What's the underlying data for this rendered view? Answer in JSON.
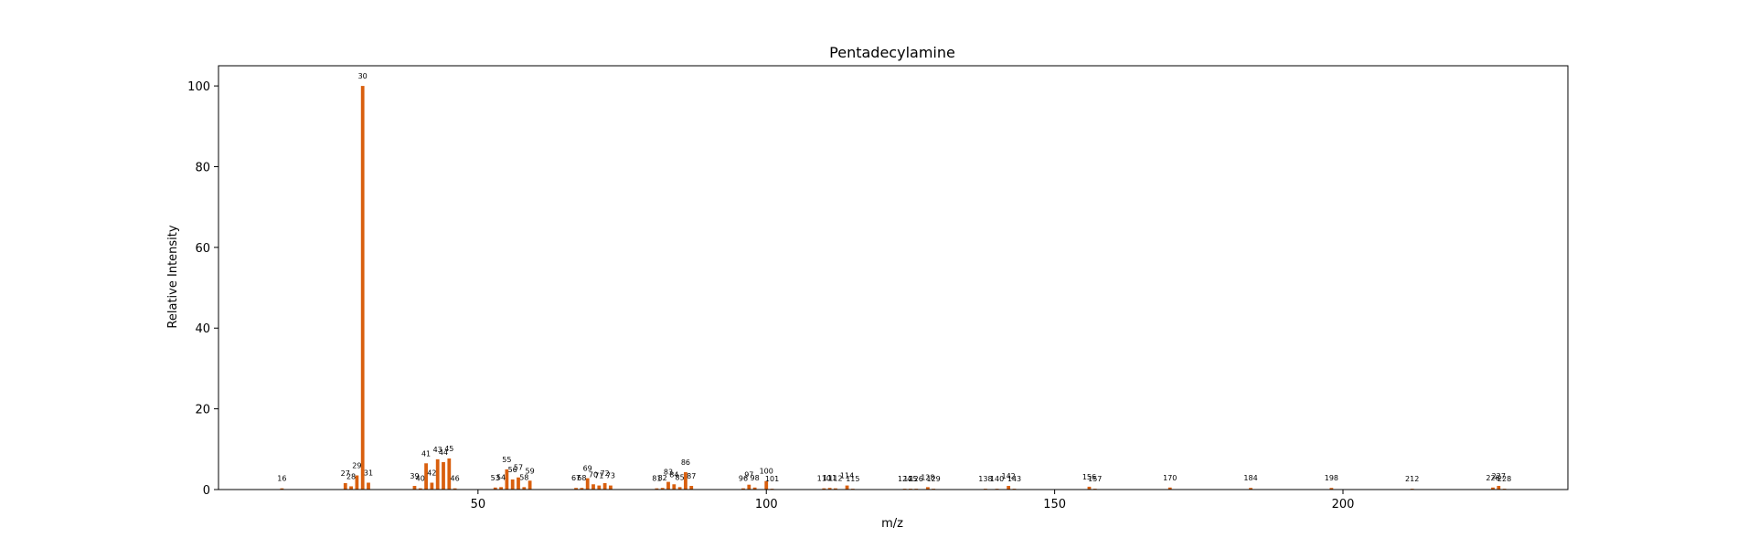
{
  "chart_data": {
    "type": "bar",
    "title": "Pentadecylamine",
    "xlabel": "m/z",
    "ylabel": "Relative Intensity",
    "xlim": [
      5,
      239
    ],
    "ylim": [
      0,
      105
    ],
    "xticks": [
      50,
      100,
      150,
      200
    ],
    "yticks": [
      0,
      20,
      40,
      60,
      80,
      100
    ],
    "bar_color": "#d95f0e",
    "grid": false,
    "legend": "none",
    "series": [
      {
        "x": [
          16,
          27,
          28,
          29,
          30,
          31,
          39,
          40,
          41,
          42,
          43,
          44,
          45,
          46,
          53,
          54,
          55,
          56,
          57,
          58,
          59,
          67,
          68,
          69,
          70,
          71,
          72,
          73,
          81,
          82,
          83,
          84,
          85,
          86,
          87,
          96,
          97,
          98,
          100,
          101,
          110,
          111,
          112,
          114,
          115,
          124,
          125,
          126,
          128,
          129,
          138,
          140,
          142,
          143,
          156,
          157,
          170,
          184,
          198,
          212,
          226,
          227,
          228
        ],
        "values": [
          0.3,
          1.6,
          0.8,
          3.5,
          100,
          1.7,
          0.9,
          0.3,
          6.5,
          1.7,
          7.5,
          6.8,
          7.7,
          0.3,
          0.5,
          0.6,
          5.0,
          2.5,
          3.0,
          0.6,
          2.2,
          0.4,
          0.4,
          2.8,
          1.3,
          1.0,
          1.6,
          1.0,
          0.3,
          0.4,
          1.9,
          1.3,
          0.6,
          4.3,
          0.9,
          0.3,
          1.2,
          0.5,
          2.1,
          0.2,
          0.3,
          0.4,
          0.3,
          1.0,
          0.2,
          0.2,
          0.2,
          0.2,
          0.6,
          0.2,
          0.2,
          0.2,
          0.9,
          0.2,
          0.7,
          0.2,
          0.5,
          0.4,
          0.4,
          0.2,
          0.5,
          0.9,
          0.2
        ],
        "labels": [
          "16",
          "27",
          "28",
          "29",
          "30",
          "31",
          "39",
          "40",
          "41",
          "42",
          "43",
          "44",
          "45",
          "46",
          "53",
          "54",
          "55",
          "56",
          "57",
          "58",
          "59",
          "67",
          "68",
          "69",
          "70",
          "71",
          "72",
          "73",
          "81",
          "82",
          "83",
          "84",
          "85",
          "86",
          "87",
          "96",
          "97",
          "98",
          "100",
          "101",
          "110",
          "111",
          "112",
          "114",
          "115",
          "124",
          "125",
          "126",
          "128",
          "129",
          "138",
          "140",
          "142",
          "143",
          "156",
          "157",
          "170",
          "184",
          "198",
          "212",
          "226",
          "227",
          "228"
        ]
      }
    ]
  }
}
